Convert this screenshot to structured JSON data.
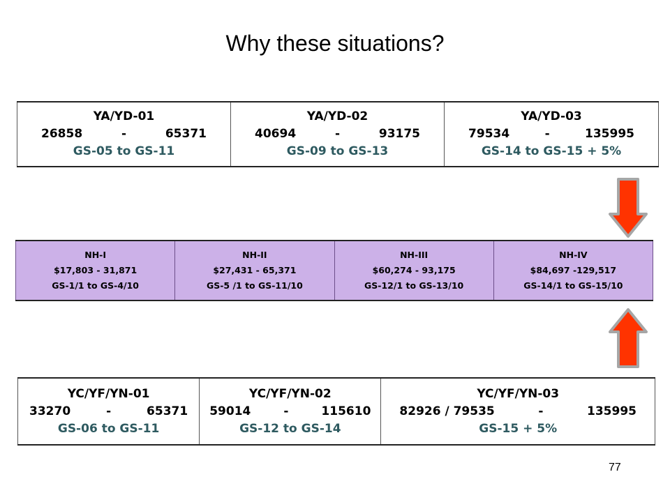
{
  "slide_title": "Why these situations?",
  "top_table": [
    {
      "code": "YA/YD-01",
      "low": "26858",
      "sep": "-",
      "high": "65371",
      "grades": "GS-05 to GS-11"
    },
    {
      "code": "YA/YD-02",
      "low": "40694",
      "sep": "-",
      "high": "93175",
      "grades": "GS-09 to GS-13"
    },
    {
      "code": "YA/YD-03",
      "low": "79534",
      "sep": "-",
      "high": "135995",
      "grades": "GS-14 to GS-15 + 5%"
    }
  ],
  "middle_table": [
    {
      "code": "NH-I",
      "range": "$17,803 - 31,871",
      "grades": "GS-1/1 to GS-4/10"
    },
    {
      "code": "NH-II",
      "range": "$27,431 - 65,371",
      "grades": "GS-5 /1 to GS-11/10"
    },
    {
      "code": "NH-III",
      "range": "$60,274 - 93,175",
      "grades": "GS-12/1 to GS-13/10"
    },
    {
      "code": "NH-IV",
      "range": "$84,697 -129,517",
      "grades": "GS-14/1 to GS-15/10"
    }
  ],
  "bottom_table": [
    {
      "code": "YC/YF/YN-01",
      "low": "33270",
      "sep": "-",
      "high": "65371",
      "grades": "GS-06 to GS-11"
    },
    {
      "code": "YC/YF/YN-02",
      "low": "59014",
      "sep": "-",
      "high": "115610",
      "grades": "GS-12 to GS-14"
    },
    {
      "code": "YC/YF/YN-03",
      "low": "82926 / 79535",
      "sep": "-",
      "high": "135995",
      "grades": "GS-15 + 5%"
    }
  ],
  "colors": {
    "arrow_fill": "#ff3300",
    "arrow_outline": "#a6a6a6",
    "nh_background": "#ccb1e8",
    "grade_text": "#2e5a60"
  },
  "page_number": "77"
}
